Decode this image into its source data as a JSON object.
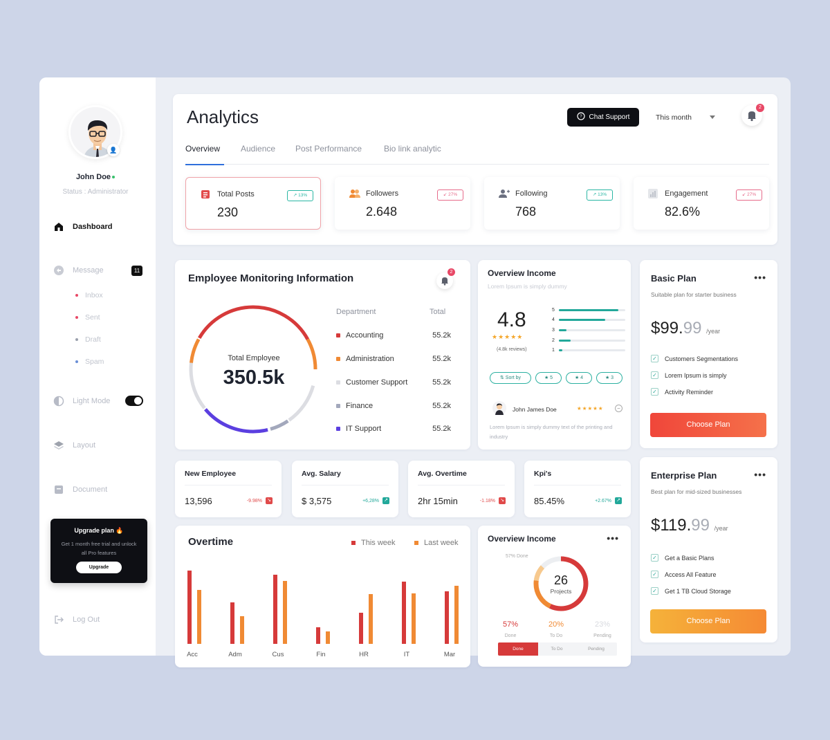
{
  "sidebar": {
    "user_name": "John Doe",
    "user_status": "Status : Administrator",
    "nav": {
      "dashboard": "Dashboard",
      "message": "Message",
      "message_count": "11",
      "inbox": "Inbox",
      "sent": "Sent",
      "draft": "Draft",
      "spam": "Spam",
      "light_mode": "Light Mode",
      "layout": "Layout",
      "document": "Document",
      "logout": "Log Out"
    },
    "upgrade": {
      "title": "Upgrade plan 🔥",
      "desc": "Get 1 month free trial and unlock all Pro features",
      "button": "Upgrade"
    }
  },
  "header": {
    "title": "Analytics",
    "chat_support": "Chat Support",
    "period": "This month",
    "notification_count": "2",
    "tabs": [
      "Overview",
      "Audience",
      "Post Performance",
      "Bio link analytic"
    ]
  },
  "stats": [
    {
      "label": "Total Posts",
      "value": "230",
      "change": "↗ 13%",
      "trend": "up"
    },
    {
      "label": "Followers",
      "value": "2.648",
      "change": "↙ 27%",
      "trend": "down"
    },
    {
      "label": "Following",
      "value": "768",
      "change": "↗ 13%",
      "trend": "up"
    },
    {
      "label": "Engagement",
      "value": "82.6%",
      "change": "↙ 27%",
      "trend": "down"
    }
  ],
  "employee": {
    "title": "Employee Monitoring Information",
    "notification_count": "2",
    "center_label": "Total Employee",
    "center_value": "350.5k",
    "col_department": "Department",
    "col_total": "Total",
    "departments": [
      {
        "name": "Accounting",
        "total": "55.2k",
        "color": "#d63a3a"
      },
      {
        "name": "Administration",
        "total": "55.2k",
        "color": "#f08a34"
      },
      {
        "name": "Customer Support",
        "total": "55.2k",
        "color": "#dcdde2"
      },
      {
        "name": "Finance",
        "total": "55.2k",
        "color": "#a3a8bc"
      },
      {
        "name": "IT Support",
        "total": "55.2k",
        "color": "#5b3fe0"
      }
    ]
  },
  "overview_income_top": {
    "title": "Overview Income",
    "subtitle": "Lorem Ipsum is simply dummy",
    "rating": "4.8",
    "stars": "★★★★★",
    "reviews": "(4.8k reviews)",
    "bars": [
      {
        "label": "5",
        "fraction": 0.9
      },
      {
        "label": "4",
        "fraction": 0.7
      },
      {
        "label": "3",
        "fraction": 0.12
      },
      {
        "label": "2",
        "fraction": 0.18
      },
      {
        "label": "1",
        "fraction": 0.05
      }
    ],
    "chips": [
      "⇅ Sort by",
      "★ 5",
      "★ 4",
      "★ 3"
    ],
    "reviewer_name": "John James Doe",
    "reviewer_stars": "★★★★★",
    "review_text": "Lorem Ipsum is simply dummy text of the printing and industry"
  },
  "mini_stats": [
    {
      "title": "New Employee",
      "value": "13,596",
      "change": "-9.98%",
      "trend": "down"
    },
    {
      "title": "Avg. Salary",
      "value": "$ 3,575",
      "change": "+6,28%",
      "trend": "up"
    },
    {
      "title": "Avg. Overtime",
      "value": "2hr 15min",
      "change": "-1.18%",
      "trend": "down"
    },
    {
      "title": "Kpi's",
      "value": "85.45%",
      "change": "+2.67%",
      "trend": "up"
    }
  ],
  "overtime": {
    "title": "Overtime",
    "legend_this": "This week",
    "legend_last": "Last week"
  },
  "chart_data": {
    "type": "bar",
    "categories": [
      "Acc",
      "Adm",
      "Cus",
      "Fin",
      "HR",
      "IT",
      "Mar"
    ],
    "series": [
      {
        "name": "This week",
        "values": [
          100,
          57,
          94,
          23,
          42,
          85,
          72
        ],
        "color": "#d63a3a"
      },
      {
        "name": "Last week",
        "values": [
          74,
          38,
          86,
          17,
          68,
          69,
          79
        ],
        "color": "#f08a34"
      }
    ],
    "ylim": [
      0,
      100
    ]
  },
  "overview_income_bottom": {
    "title": "Overview Income",
    "done_label": "57% Done",
    "center_value": "26",
    "center_label": "Projects",
    "pcts": [
      {
        "value": "57%",
        "label": "Done",
        "color": "#d63a3a"
      },
      {
        "value": "20%",
        "label": "To Do",
        "color": "#f08a34"
      },
      {
        "value": "23%",
        "label": "Pending",
        "color": "#d8dadf"
      }
    ],
    "segments": [
      "Done",
      "To Do",
      "Pending"
    ]
  },
  "plans": {
    "basic": {
      "title": "Basic Plan",
      "subtitle": "Suitable plan for starter business",
      "price": "$99.",
      "cents": "99",
      "period": "/year",
      "features": [
        "Customers Segmentations",
        "Lorem Ipsum is simply",
        "Activity Reminder"
      ],
      "button": "Choose Plan"
    },
    "enterprise": {
      "title": "Enterprise Plan",
      "subtitle": "Best plan for mid-sized businesses",
      "price": "$119.",
      "cents": "99",
      "period": "/year",
      "features": [
        "Get a Basic Plans",
        "Access All Feature",
        "Get 1 TB Cloud Storage"
      ],
      "button": "Choose Plan"
    },
    "dots": "•••"
  }
}
